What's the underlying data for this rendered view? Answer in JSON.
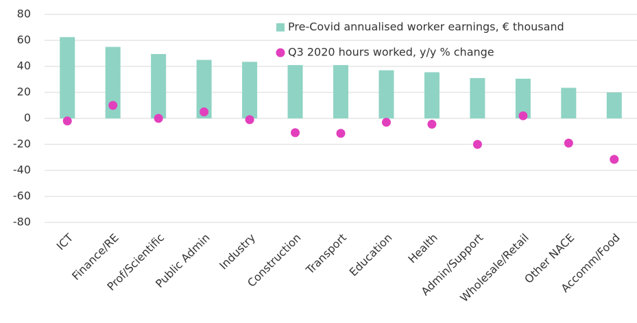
{
  "chart_data": {
    "type": "bar",
    "categories": [
      "ICT",
      "Finance/RE",
      "Prof/Scientific",
      "Public Admin",
      "Industry",
      "Construction",
      "Transport",
      "Education",
      "Health",
      "Admin/Support",
      "Wholesale/Retail",
      "Other NACE",
      "Accomm/Food"
    ],
    "series": [
      {
        "name": "Pre-Covid annualised worker earnings, € thousand",
        "type": "bar",
        "color": "#8fd3c4",
        "values": [
          62.5,
          55,
          49.5,
          45,
          43.5,
          41,
          41,
          37,
          35.5,
          31,
          30.5,
          23.5,
          20
        ]
      },
      {
        "name": "Q3 2020 hours worked, y/y % change",
        "type": "scatter",
        "color": "#e23fbd",
        "values": [
          -2,
          10,
          0,
          5,
          -1,
          -11,
          -11.5,
          -3,
          -4.5,
          -20,
          2,
          -19,
          -31.5
        ]
      }
    ],
    "ylim": [
      -80,
      80
    ],
    "yticks": [
      -80,
      -60,
      -40,
      -20,
      0,
      20,
      40,
      60,
      80
    ],
    "grid": true
  }
}
